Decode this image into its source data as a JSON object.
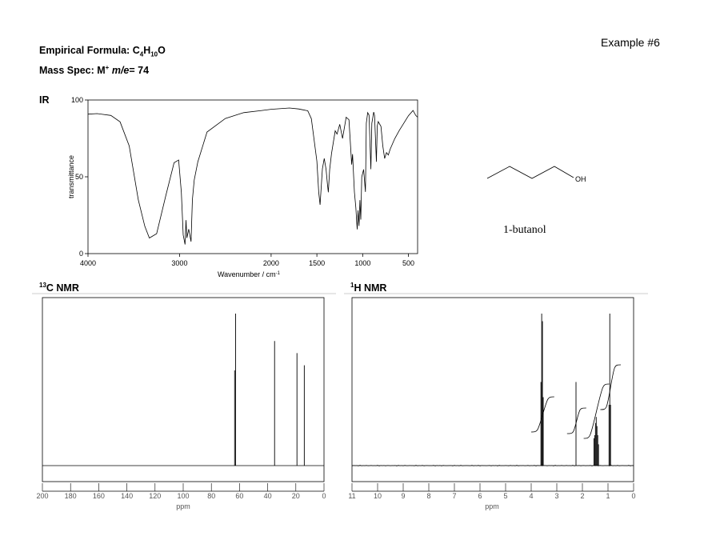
{
  "header": {
    "example_label": "Example #6",
    "formula_label": "Empirical Formula: C",
    "formula_c_sub": "4",
    "formula_h": "H",
    "formula_h_sub": "10",
    "formula_o": "O",
    "mass_spec_label": "Mass Spec: M",
    "mass_spec_sup": "+",
    "mass_spec_me": "m/e",
    "mass_spec_value": "= 74"
  },
  "structure": {
    "oh_label": "OH",
    "compound_name": "1-butanol"
  },
  "sections": {
    "ir": "IR",
    "c13_sup": "13",
    "c13_text": "C NMR",
    "h1_sup": "1",
    "h1_text": "H NMR"
  },
  "chart_data": [
    {
      "id": "ir",
      "type": "line",
      "xlabel": "Wavenumber / cm",
      "xlabel_sup": "-1",
      "ylabel": "transmittance",
      "xlim": [
        4000,
        400
      ],
      "ylim": [
        0,
        100
      ],
      "xticks": [
        4000,
        3000,
        2000,
        1500,
        1000,
        500
      ],
      "yticks": [
        0,
        50,
        100
      ],
      "x": [
        4000,
        3900,
        3750,
        3650,
        3550,
        3450,
        3380,
        3330,
        3250,
        3150,
        3060,
        3010,
        2980,
        2960,
        2940,
        2930,
        2920,
        2900,
        2875,
        2860,
        2840,
        2800,
        2700,
        2500,
        2300,
        2100,
        2000,
        1800,
        1700,
        1600,
        1560,
        1500,
        1480,
        1465,
        1440,
        1420,
        1400,
        1385,
        1375,
        1360,
        1340,
        1300,
        1280,
        1250,
        1220,
        1180,
        1150,
        1120,
        1110,
        1090,
        1075,
        1060,
        1050,
        1040,
        1030,
        1020,
        1010,
        990,
        970,
        960,
        945,
        930,
        910,
        900,
        880,
        870,
        850,
        840,
        830,
        800,
        780,
        760,
        740,
        720,
        700,
        650,
        600,
        550,
        500,
        450,
        420,
        400
      ],
      "y": [
        91,
        91,
        90,
        86,
        70,
        35,
        18,
        10,
        13,
        38,
        59,
        61,
        40,
        12,
        6,
        22,
        10,
        16,
        8,
        35,
        48,
        60,
        79,
        88,
        92,
        93,
        94,
        95,
        94,
        93,
        88,
        60,
        40,
        32,
        55,
        62,
        55,
        45,
        40,
        55,
        65,
        80,
        78,
        84,
        75,
        89,
        87,
        58,
        65,
        40,
        30,
        16,
        28,
        18,
        35,
        22,
        50,
        55,
        40,
        85,
        92,
        90,
        55,
        85,
        92,
        90,
        60,
        83,
        86,
        83,
        70,
        62,
        66,
        64,
        68,
        75,
        80,
        85,
        90,
        93,
        90,
        89
      ]
    },
    {
      "id": "c13",
      "type": "line",
      "xlabel": "ppm",
      "xlim": [
        200,
        0
      ],
      "xticks": [
        200,
        180,
        160,
        140,
        120,
        100,
        80,
        60,
        40,
        20,
        0
      ],
      "peaks_ppm": [
        62.8,
        35.1,
        19.2,
        14.0
      ],
      "peak_heights": [
        1.0,
        0.82,
        0.74,
        0.66
      ]
    },
    {
      "id": "h1",
      "type": "line",
      "xlabel": "ppm",
      "xlim": [
        11,
        0
      ],
      "xticks": [
        11,
        10,
        9,
        8,
        7,
        6,
        5,
        4,
        3,
        2,
        1,
        0
      ],
      "peaks_ppm": [
        3.62,
        3.59,
        3.56,
        3.53,
        2.25,
        1.55,
        1.52,
        1.49,
        1.46,
        1.43,
        1.4,
        1.37,
        0.96,
        0.93,
        0.9
      ],
      "peak_heights": [
        0.55,
        1.0,
        0.95,
        0.45,
        0.55,
        0.18,
        0.2,
        0.28,
        0.32,
        0.26,
        0.2,
        0.14,
        0.4,
        1.0,
        0.4
      ],
      "integrals": [
        {
          "from": 3.75,
          "to": 3.35,
          "rise": 2
        },
        {
          "from": 2.35,
          "to": 2.1,
          "rise": 1
        },
        {
          "from": 1.7,
          "to": 1.2,
          "rise": 4
        },
        {
          "from": 1.05,
          "to": 0.75,
          "rise": 3
        }
      ]
    }
  ]
}
